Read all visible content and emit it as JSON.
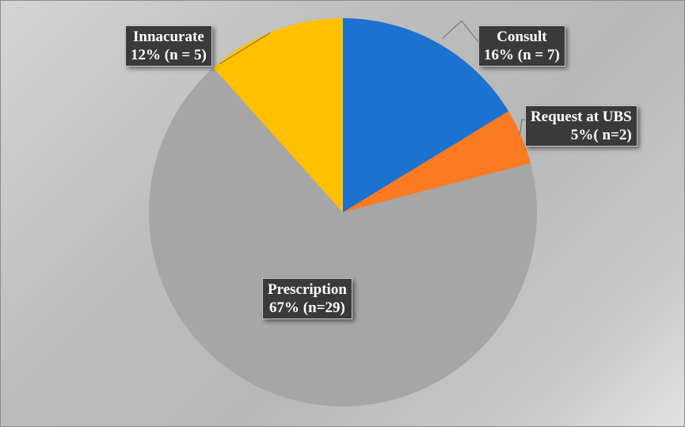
{
  "chart_data": {
    "type": "pie",
    "start_angle_deg": 90,
    "direction": "clockwise",
    "slices": [
      {
        "name": "Consult",
        "percent_label": "16% (n = 7)",
        "value": 7,
        "color": "#1b72d0"
      },
      {
        "name": "Request at UBS",
        "percent_label": "5%( n=2)",
        "value": 2,
        "color": "#fb7b23"
      },
      {
        "name": "Prescription",
        "percent_label": "67% (n=29)",
        "value": 29,
        "color": "#a6a6a6"
      },
      {
        "name": "Innacurate",
        "percent_label": "12% (n = 5)",
        "value": 5,
        "color": "#ffc000"
      }
    ]
  }
}
